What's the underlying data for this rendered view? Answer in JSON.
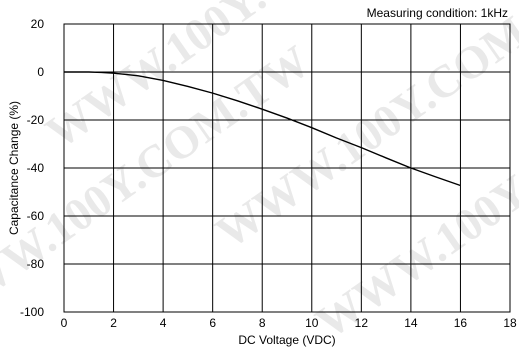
{
  "watermark": "WWW.100Y.COM.TW",
  "chart_data": {
    "type": "line",
    "title": "",
    "annotation": "Measuring condition: 1kHz",
    "xlabel": "DC Voltage (VDC)",
    "ylabel": "Capacitance Change (%)",
    "xlim": [
      0,
      18
    ],
    "ylim": [
      -100,
      20
    ],
    "xticks": [
      0,
      2,
      4,
      6,
      8,
      10,
      12,
      14,
      16,
      18
    ],
    "yticks": [
      20,
      0,
      -20,
      -40,
      -60,
      -80,
      -100
    ],
    "grid": true,
    "legend": "none",
    "line_color": "#000000",
    "series": [
      {
        "x": [
          0,
          0.5,
          1,
          1.5,
          2,
          2.5,
          3,
          4,
          5,
          6,
          7,
          8,
          9,
          10,
          11,
          12,
          13,
          14,
          15,
          16
        ],
        "y": [
          0,
          0,
          0,
          -0.2,
          -0.5,
          -1.0,
          -1.6,
          -3.5,
          -6.0,
          -8.8,
          -12.0,
          -15.5,
          -19.2,
          -23.2,
          -27.5,
          -31.5,
          -35.8,
          -40.0,
          -43.7,
          -47.3
        ]
      }
    ]
  }
}
